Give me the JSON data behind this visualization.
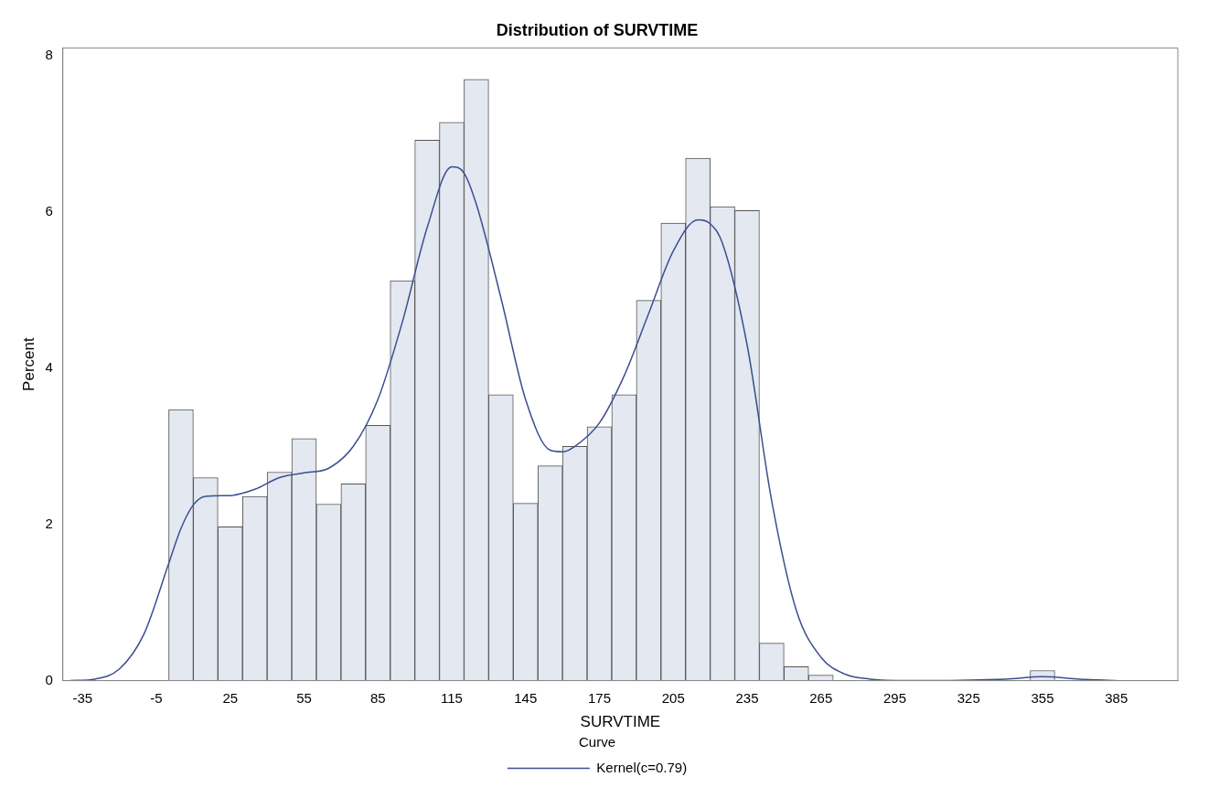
{
  "chart_data": {
    "type": "histogram",
    "title": "Distribution of SURVTIME",
    "xlabel": "SURVTIME",
    "ylabel": "Percent",
    "legend_title": "Curve",
    "legend": "bottom",
    "grid": false,
    "bins": [
      0,
      10,
      20,
      30,
      40,
      50,
      60,
      70,
      80,
      90,
      100,
      110,
      120,
      130,
      140,
      150,
      160,
      170,
      180,
      190,
      200,
      210,
      220,
      230,
      240,
      250,
      260,
      270,
      280,
      290,
      300,
      310,
      320,
      330,
      340,
      350,
      360
    ],
    "values": [
      3.47,
      2.6,
      1.97,
      2.36,
      2.67,
      3.1,
      2.26,
      2.52,
      3.27,
      5.12,
      6.92,
      7.15,
      7.7,
      3.66,
      2.27,
      2.75,
      3.0,
      3.25,
      3.66,
      4.87,
      5.86,
      6.69,
      6.07,
      6.02,
      0.48,
      0.18,
      0.07,
      0,
      0,
      0,
      0,
      0,
      0,
      0,
      0,
      0.13
    ],
    "color": "#e3e8f1",
    "series": [
      {
        "type": "line",
        "name": "Kernel(c=0.79)",
        "color": "#3b4f8f",
        "x": [
          -40,
          -30,
          -20,
          -10,
          0,
          5,
          10,
          15,
          25,
          35,
          45,
          55,
          65,
          75,
          85,
          95,
          105,
          115,
          120,
          125,
          135,
          145,
          155,
          160,
          165,
          175,
          185,
          195,
          205,
          215,
          220,
          225,
          235,
          245,
          255,
          265,
          275,
          285,
          300,
          340,
          355,
          370,
          385
        ],
        "values": [
          0,
          0.02,
          0.15,
          0.6,
          1.5,
          1.95,
          2.25,
          2.36,
          2.37,
          2.45,
          2.6,
          2.66,
          2.72,
          3.0,
          3.6,
          4.6,
          5.8,
          6.58,
          6.5,
          6.1,
          4.9,
          3.6,
          2.95,
          2.93,
          3.0,
          3.3,
          3.9,
          4.7,
          5.5,
          5.9,
          5.85,
          5.6,
          4.3,
          2.3,
          0.9,
          0.3,
          0.08,
          0.02,
          0,
          0.02,
          0.05,
          0.02,
          0
        ]
      }
    ],
    "xlim": [
      -43,
      410
    ],
    "xticks": [
      -35,
      -5,
      25,
      55,
      85,
      115,
      145,
      175,
      205,
      235,
      265,
      295,
      325,
      355,
      385
    ],
    "ylim": [
      0,
      8.1
    ],
    "yticks": [
      0,
      2,
      4,
      6,
      8
    ]
  }
}
